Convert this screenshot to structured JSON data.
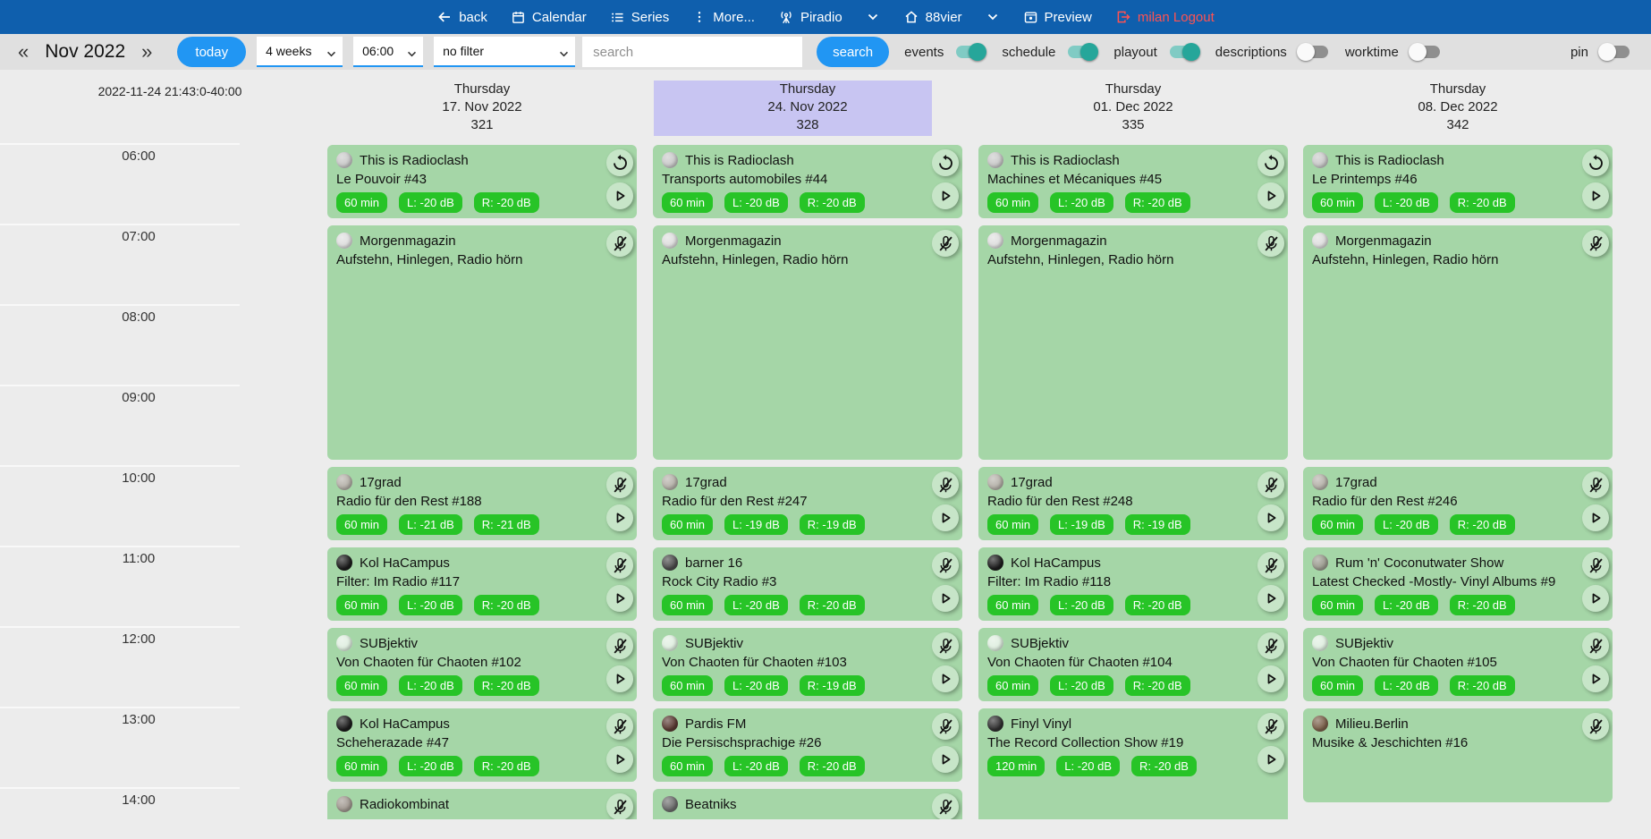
{
  "navbar": {
    "back": "back",
    "calendar": "Calendar",
    "series": "Series",
    "more": "More...",
    "station_primary": "Piradio",
    "station_secondary": "88vier",
    "preview": "Preview",
    "logout": "milan Logout"
  },
  "toolbar": {
    "prev": "«",
    "month_label": "Nov 2022",
    "next": "»",
    "today_button": "today",
    "range_select": "4 weeks",
    "time_select": "06:00",
    "filter_select": "no filter",
    "search_placeholder": "search",
    "search_button": "search",
    "toggles": [
      {
        "label": "events",
        "on": true
      },
      {
        "label": "schedule",
        "on": true
      },
      {
        "label": "playout",
        "on": true
      },
      {
        "label": "descriptions",
        "on": false
      },
      {
        "label": "worktime",
        "on": false
      },
      {
        "label": "pin",
        "on": false
      }
    ]
  },
  "timegrid": {
    "timestamp": "2022-11-24 21:43:0-40:00",
    "hours": [
      "06:00",
      "07:00",
      "08:00",
      "09:00",
      "10:00",
      "11:00",
      "12:00",
      "13:00",
      "14:00"
    ]
  },
  "columns": [
    {
      "weekday": "Thursday",
      "date": "17. Nov 2022",
      "day_number": "321",
      "highlighted": false,
      "events": [
        {
          "series": "This is Radioclash",
          "episode": "Le Pouvoir #43",
          "start": "06:00",
          "duration_min": 60,
          "badges": [
            "60 min",
            "L: -20 dB",
            "R: -20 dB"
          ],
          "buttons": [
            "replay",
            "play"
          ],
          "avatar_color": "#c9c9c9"
        },
        {
          "series": "Morgenmagazin",
          "episode": "Aufstehn, Hinlegen, Radio hörn",
          "start": "07:00",
          "duration_min": 180,
          "badges": [],
          "buttons": [
            "mic-off"
          ],
          "avatar_color": "#dedede"
        },
        {
          "series": "17grad",
          "episode": "Radio für den Rest #188",
          "start": "10:00",
          "duration_min": 60,
          "badges": [
            "60 min",
            "L: -21 dB",
            "R: -21 dB"
          ],
          "buttons": [
            "mic-off",
            "play"
          ],
          "avatar_color": "#b4b0a8"
        },
        {
          "series": "Kol HaCampus",
          "episode": "Filter: Im Radio #117",
          "start": "11:00",
          "duration_min": 60,
          "badges": [
            "60 min",
            "L: -20 dB",
            "R: -20 dB"
          ],
          "buttons": [
            "mic-off",
            "play"
          ],
          "avatar_color": "#1c1c1c"
        },
        {
          "series": "SUBjektiv",
          "episode": "Von Chaoten für Chaoten #102",
          "start": "12:00",
          "duration_min": 60,
          "badges": [
            "60 min",
            "L: -20 dB",
            "R: -20 dB"
          ],
          "buttons": [
            "mic-off",
            "play"
          ],
          "avatar_color": "#dfeee0"
        },
        {
          "series": "Kol HaCampus",
          "episode": "Scheherazade #47",
          "start": "13:00",
          "duration_min": 60,
          "badges": [
            "60 min",
            "L: -20 dB",
            "R: -20 dB"
          ],
          "buttons": [
            "mic-off",
            "play"
          ],
          "avatar_color": "#1c1c1c"
        },
        {
          "series": "Radiokombinat",
          "episode": "",
          "start": "14:00",
          "duration_min": 60,
          "badges": [],
          "buttons": [
            "mic-off"
          ],
          "avatar_color": "#a09890"
        }
      ]
    },
    {
      "weekday": "Thursday",
      "date": "24. Nov 2022",
      "day_number": "328",
      "highlighted": true,
      "events": [
        {
          "series": "This is Radioclash",
          "episode": "Transports automobiles #44",
          "start": "06:00",
          "duration_min": 60,
          "badges": [
            "60 min",
            "L: -20 dB",
            "R: -20 dB"
          ],
          "buttons": [
            "replay",
            "play"
          ],
          "avatar_color": "#c9c9c9"
        },
        {
          "series": "Morgenmagazin",
          "episode": "Aufstehn, Hinlegen, Radio hörn",
          "start": "07:00",
          "duration_min": 180,
          "badges": [],
          "buttons": [
            "mic-off"
          ],
          "avatar_color": "#dedede"
        },
        {
          "series": "17grad",
          "episode": "Radio für den Rest #247",
          "start": "10:00",
          "duration_min": 60,
          "badges": [
            "60 min",
            "L: -19 dB",
            "R: -19 dB"
          ],
          "buttons": [
            "mic-off",
            "play"
          ],
          "avatar_color": "#b4b0a8"
        },
        {
          "series": "barner 16",
          "episode": "Rock City Radio #3",
          "start": "11:00",
          "duration_min": 60,
          "badges": [
            "60 min",
            "L: -20 dB",
            "R: -20 dB"
          ],
          "buttons": [
            "mic-off",
            "play"
          ],
          "avatar_color": "#4a4a4a"
        },
        {
          "series": "SUBjektiv",
          "episode": "Von Chaoten für Chaoten #103",
          "start": "12:00",
          "duration_min": 60,
          "badges": [
            "60 min",
            "L: -20 dB",
            "R: -19 dB"
          ],
          "buttons": [
            "mic-off",
            "play"
          ],
          "avatar_color": "#dfeee0"
        },
        {
          "series": "Pardis FM",
          "episode": "Die Persischsprachige #26",
          "start": "13:00",
          "duration_min": 60,
          "badges": [
            "60 min",
            "L: -20 dB",
            "R: -20 dB"
          ],
          "buttons": [
            "mic-off",
            "play"
          ],
          "avatar_color": "#5a3a33"
        },
        {
          "series": "Beatniks",
          "episode": "",
          "start": "14:00",
          "duration_min": 60,
          "badges": [],
          "buttons": [
            "mic-off"
          ],
          "avatar_color": "#6b6b6b"
        }
      ]
    },
    {
      "weekday": "Thursday",
      "date": "01. Dec 2022",
      "day_number": "335",
      "highlighted": false,
      "events": [
        {
          "series": "This is Radioclash",
          "episode": "Machines et Mécaniques #45",
          "start": "06:00",
          "duration_min": 60,
          "badges": [
            "60 min",
            "L: -20 dB",
            "R: -20 dB"
          ],
          "buttons": [
            "replay",
            "play"
          ],
          "avatar_color": "#c9c9c9"
        },
        {
          "series": "Morgenmagazin",
          "episode": "Aufstehn, Hinlegen, Radio hörn",
          "start": "07:00",
          "duration_min": 180,
          "badges": [],
          "buttons": [
            "mic-off"
          ],
          "avatar_color": "#dedede"
        },
        {
          "series": "17grad",
          "episode": "Radio für den Rest #248",
          "start": "10:00",
          "duration_min": 60,
          "badges": [
            "60 min",
            "L: -19 dB",
            "R: -19 dB"
          ],
          "buttons": [
            "mic-off",
            "play"
          ],
          "avatar_color": "#b4b0a8"
        },
        {
          "series": "Kol HaCampus",
          "episode": "Filter: Im Radio #118",
          "start": "11:00",
          "duration_min": 60,
          "badges": [
            "60 min",
            "L: -20 dB",
            "R: -20 dB"
          ],
          "buttons": [
            "mic-off",
            "play"
          ],
          "avatar_color": "#1c1c1c"
        },
        {
          "series": "SUBjektiv",
          "episode": "Von Chaoten für Chaoten #104",
          "start": "12:00",
          "duration_min": 60,
          "badges": [
            "60 min",
            "L: -20 dB",
            "R: -20 dB"
          ],
          "buttons": [
            "mic-off",
            "play"
          ],
          "avatar_color": "#dfeee0"
        },
        {
          "series": "Finyl Vinyl",
          "episode": "The Record Collection Show #19",
          "start": "13:00",
          "duration_min": 120,
          "badges": [
            "120 min",
            "L: -20 dB",
            "R: -20 dB"
          ],
          "buttons": [
            "mic-off",
            "play"
          ],
          "avatar_color": "#2f2f2f"
        }
      ]
    },
    {
      "weekday": "Thursday",
      "date": "08. Dec 2022",
      "day_number": "342",
      "highlighted": false,
      "events": [
        {
          "series": "This is Radioclash",
          "episode": "Le Printemps #46",
          "start": "06:00",
          "duration_min": 60,
          "badges": [
            "60 min",
            "L: -20 dB",
            "R: -20 dB"
          ],
          "buttons": [
            "replay",
            "play"
          ],
          "avatar_color": "#c9c9c9"
        },
        {
          "series": "Morgenmagazin",
          "episode": "Aufstehn, Hinlegen, Radio hörn",
          "start": "07:00",
          "duration_min": 180,
          "badges": [],
          "buttons": [
            "mic-off"
          ],
          "avatar_color": "#dedede"
        },
        {
          "series": "17grad",
          "episode": "Radio für den Rest #246",
          "start": "10:00",
          "duration_min": 60,
          "badges": [
            "60 min",
            "L: -20 dB",
            "R: -20 dB"
          ],
          "buttons": [
            "mic-off",
            "play"
          ],
          "avatar_color": "#b4b0a8"
        },
        {
          "series": "Rum 'n' Coconutwater Show",
          "episode": "Latest Checked -Mostly- Vinyl Albums #9",
          "start": "11:00",
          "duration_min": 60,
          "badges": [
            "60 min",
            "L: -20 dB",
            "R: -20 dB"
          ],
          "buttons": [
            "mic-off",
            "play"
          ],
          "avatar_color": "#9a9a8e"
        },
        {
          "series": "SUBjektiv",
          "episode": "Von Chaoten für Chaoten #105",
          "start": "12:00",
          "duration_min": 60,
          "badges": [
            "60 min",
            "L: -20 dB",
            "R: -20 dB"
          ],
          "buttons": [
            "mic-off",
            "play"
          ],
          "avatar_color": "#dfeee0"
        },
        {
          "series": "Milieu.Berlin",
          "episode": "Musike & Jeschichten #16",
          "start": "13:00",
          "duration_min": 75,
          "badges": [],
          "buttons": [
            "mic-off"
          ],
          "avatar_color": "#7a5f4a"
        }
      ]
    }
  ],
  "colors": {
    "navbar_blue": "#0f5fad",
    "accent_blue": "#2196f3",
    "toggle_on_teal": "#26a69a",
    "card_green": "#a5d6a7",
    "badge_green": "#27c427",
    "today_highlight_purple": "#c8c5f2",
    "logout_red": "#ff5252"
  }
}
